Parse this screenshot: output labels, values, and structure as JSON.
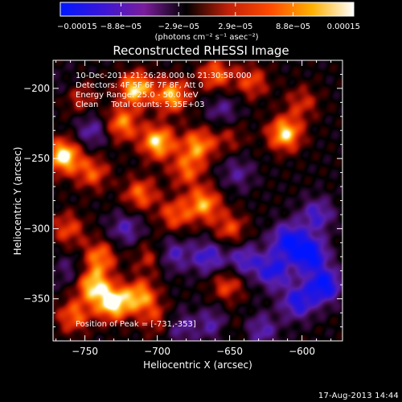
{
  "chart_data": {
    "type": "heatmap",
    "title": "Reconstructed RHESSI Image",
    "xlabel": "Heliocentric X (arcsec)",
    "ylabel": "Heliocentric Y (arcsec)",
    "xlim": [
      -772,
      -572
    ],
    "ylim": [
      -380,
      -180
    ],
    "x_ticks": [
      -750,
      -700,
      -650,
      -600
    ],
    "x_tick_labels": [
      "−750",
      "−700",
      "−650",
      "−600"
    ],
    "y_ticks": [
      -200,
      -250,
      -300,
      -350
    ],
    "y_tick_labels": [
      "−200",
      "−250",
      "−300",
      "−350"
    ],
    "colorbar": {
      "range": [
        -0.00015,
        0.00015
      ],
      "tick_values": [
        -0.00015,
        -8.8e-05,
        -2.9e-05,
        2.9e-05,
        8.8e-05,
        0.00015
      ],
      "tick_labels": [
        "−0.00015",
        "−8.8e−05",
        "−2.9e−05",
        "2.9e−05",
        "8.8e−05",
        "0.00015"
      ],
      "units": "(photons cm⁻² s⁻¹ asec⁻²)",
      "colors": [
        "#0018ff",
        "#3a16d8",
        "#7a1d9c",
        "#000000",
        "#c02008",
        "#ff4a00",
        "#ffb000",
        "#ffffff"
      ]
    },
    "annotations": [
      "10-Dec-2011 21:26:28.000 to 21:30:58.000",
      "Detectors: 4F 5F 6F 7F 8F, Att 0",
      "Energy Range: 25.0 - 50.0 keV",
      "Clean     Total counts: 5.35E+03"
    ],
    "peak_label": "Position of Peak = [-731,-353]",
    "peak": [
      -731,
      -353
    ],
    "features": [
      {
        "x": -715,
        "y": -200,
        "v": 0.9
      },
      {
        "x": -690,
        "y": -205,
        "v": 0.8
      },
      {
        "x": -660,
        "y": -190,
        "v": 0.6
      },
      {
        "x": -635,
        "y": -195,
        "v": 0.5
      },
      {
        "x": -755,
        "y": -205,
        "v": 0.55
      },
      {
        "x": -725,
        "y": -225,
        "v": 0.7
      },
      {
        "x": -700,
        "y": -238,
        "v": 0.9
      },
      {
        "x": -672,
        "y": -240,
        "v": 0.7
      },
      {
        "x": -680,
        "y": -258,
        "v": 0.55
      },
      {
        "x": -650,
        "y": -235,
        "v": 0.3
      },
      {
        "x": -612,
        "y": -232,
        "v": 0.9
      },
      {
        "x": -600,
        "y": -210,
        "v": 0.4
      },
      {
        "x": -765,
        "y": -248,
        "v": 1.0
      },
      {
        "x": -745,
        "y": -260,
        "v": 0.55
      },
      {
        "x": -712,
        "y": -275,
        "v": 0.6
      },
      {
        "x": -688,
        "y": -290,
        "v": 0.55
      },
      {
        "x": -668,
        "y": -282,
        "v": 0.75
      },
      {
        "x": -650,
        "y": -300,
        "v": 0.5
      },
      {
        "x": -762,
        "y": -300,
        "v": 0.5
      },
      {
        "x": -740,
        "y": -320,
        "v": 0.65
      },
      {
        "x": -705,
        "y": -320,
        "v": 0.4
      },
      {
        "x": -745,
        "y": -340,
        "v": 0.85
      },
      {
        "x": -731,
        "y": -353,
        "v": 1.0
      },
      {
        "x": -712,
        "y": -348,
        "v": 0.75
      },
      {
        "x": -758,
        "y": -362,
        "v": 0.6
      },
      {
        "x": -700,
        "y": -365,
        "v": 0.4
      },
      {
        "x": -652,
        "y": -340,
        "v": 0.5
      },
      {
        "x": -652,
        "y": -370,
        "v": 0.3
      },
      {
        "x": -760,
        "y": -200,
        "v": -0.3
      },
      {
        "x": -745,
        "y": -230,
        "v": -0.45
      },
      {
        "x": -655,
        "y": -215,
        "v": -0.35
      },
      {
        "x": -645,
        "y": -260,
        "v": -0.35
      },
      {
        "x": -722,
        "y": -300,
        "v": -0.45
      },
      {
        "x": -690,
        "y": -318,
        "v": -0.5
      },
      {
        "x": -665,
        "y": -320,
        "v": -0.6
      },
      {
        "x": -640,
        "y": -322,
        "v": -0.55
      },
      {
        "x": -620,
        "y": -330,
        "v": -0.7
      },
      {
        "x": -610,
        "y": -308,
        "v": -0.8
      },
      {
        "x": -595,
        "y": -318,
        "v": -0.95
      },
      {
        "x": -585,
        "y": -340,
        "v": -0.9
      },
      {
        "x": -590,
        "y": -290,
        "v": -0.55
      },
      {
        "x": -603,
        "y": -352,
        "v": -0.7
      },
      {
        "x": -660,
        "y": -368,
        "v": -0.55
      },
      {
        "x": -628,
        "y": -372,
        "v": -0.45
      },
      {
        "x": -685,
        "y": -370,
        "v": -0.4
      },
      {
        "x": -760,
        "y": -330,
        "v": -0.3
      }
    ]
  },
  "footer": {
    "timestamp": "17-Aug-2013 14:44"
  }
}
